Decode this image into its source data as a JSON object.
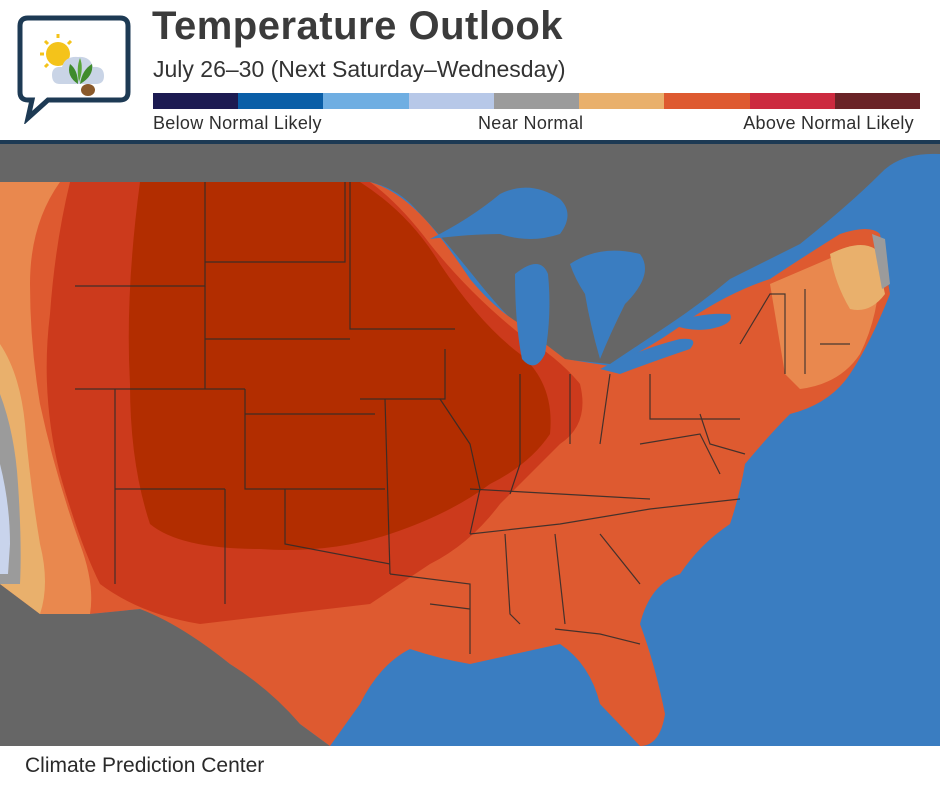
{
  "header": {
    "title": "Temperature Outlook",
    "subtitle": "July 26–30 (Next Saturday–Wednesday)"
  },
  "legend": {
    "colors": [
      "#1c1b52",
      "#0a5ea7",
      "#6faee2",
      "#b7c8e8",
      "#9b9b9b",
      "#e9b06c",
      "#de5a30",
      "#cc2a3f",
      "#6a2327"
    ],
    "below_label": "Below Normal Likely",
    "near_label": "Near Normal",
    "above_label": "Above Normal Likely"
  },
  "map": {
    "colors": {
      "water": "#3a7dc1",
      "land_other": "#666666",
      "strongest_above": "#b22d00",
      "strong_above": "#cc3a1c",
      "above": "#de5a30",
      "slightly_above": "#e9884e",
      "light_above": "#e9b06c",
      "near_normal": "#9b9b9b",
      "below_light": "#c9d4ec"
    }
  },
  "footer": {
    "source": "Climate Prediction Center"
  }
}
